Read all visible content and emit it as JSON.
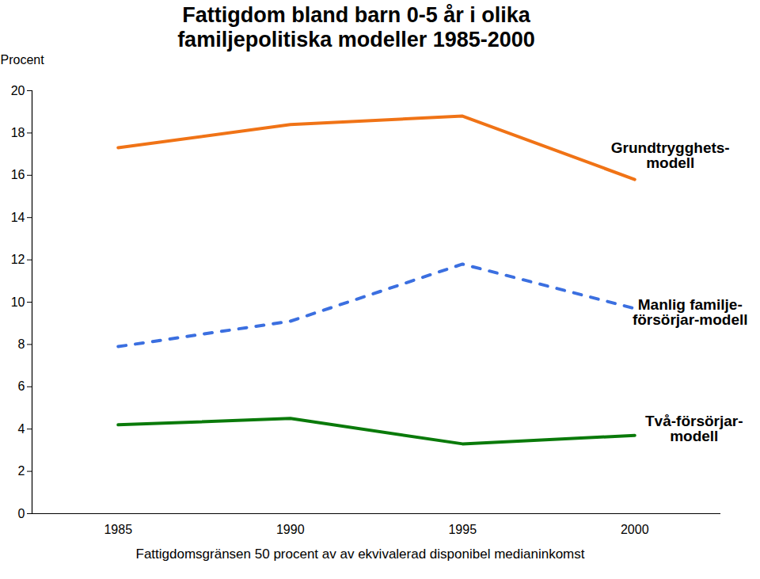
{
  "chart_data": {
    "type": "line",
    "title": "Fattigdom bland barn 0-5 år i olika\nfamiljepolitiska modeller 1985-2000",
    "y_label": "Procent",
    "caption": "Fattigdomsgränsen 50 procent av av ekvivalerad disponibel medianinkomst",
    "x": [
      1985,
      1990,
      1995,
      2000
    ],
    "series": [
      {
        "name": "Grundtrygghets-\nmodell",
        "color": "#f07316",
        "line_style": "solid",
        "values": [
          17.3,
          18.4,
          18.8,
          15.8
        ]
      },
      {
        "name": "Manlig familje-\nförsörjar-modell",
        "color": "#3b6fe0",
        "line_style": "dashed",
        "values": [
          7.9,
          9.1,
          11.8,
          9.7
        ]
      },
      {
        "name": "Två-försörjar-\nmodell",
        "color": "#0a7a0a",
        "line_style": "solid",
        "values": [
          4.2,
          4.5,
          3.3,
          3.7
        ]
      }
    ],
    "xlim": [
      1982.5,
      2002.5
    ],
    "xticks": [
      1985,
      1990,
      1995,
      2000
    ],
    "ylim": [
      0,
      20
    ],
    "yticks": [
      0,
      2,
      4,
      6,
      8,
      10,
      12,
      14,
      16,
      18,
      20
    ],
    "grid": false
  }
}
